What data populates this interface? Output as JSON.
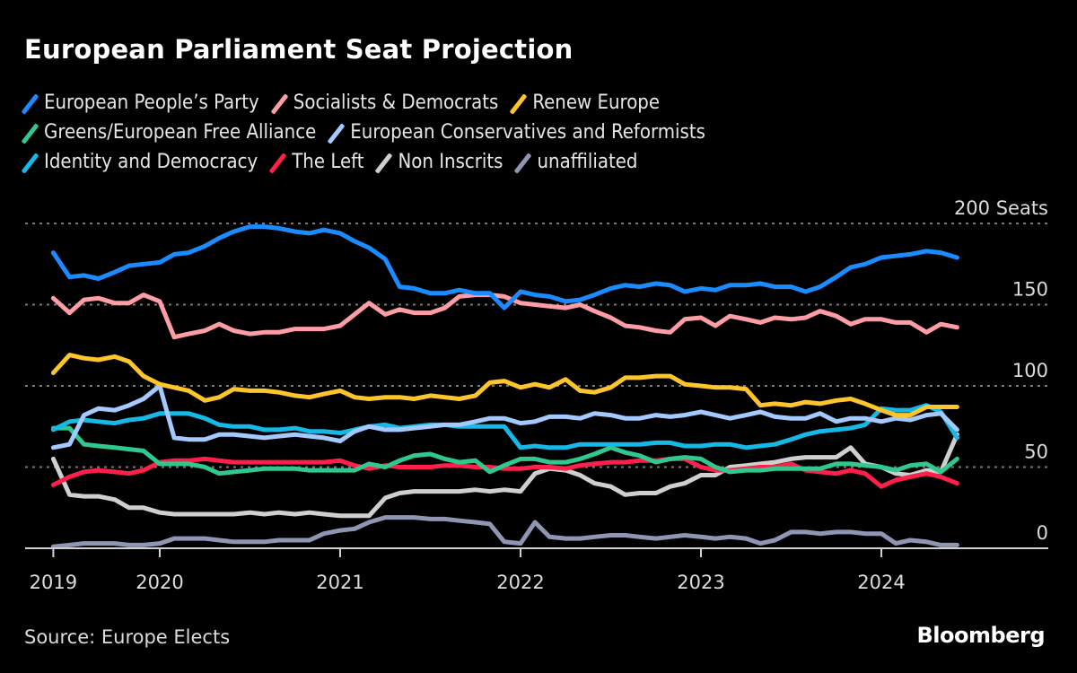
{
  "chart_data": {
    "type": "line",
    "title": "European Parliament Seat Projection",
    "xlabel": "",
    "ylabel": "Seats",
    "y_unit_label": "200 Seats",
    "ylim": [
      0,
      200
    ],
    "yticks": [
      0,
      50,
      100,
      150,
      200
    ],
    "ytick_labels": [
      "0",
      "50",
      "100",
      "150",
      "200 Seats"
    ],
    "xlim": [
      2019.41,
      2024.42
    ],
    "xticks": [
      2019.41,
      2020,
      2021,
      2022,
      2023,
      2024
    ],
    "xtick_labels": [
      "2019",
      "2020",
      "2021",
      "2022",
      "2023",
      "2024"
    ],
    "grid": true,
    "legend_position": "top-left",
    "x": [
      2019.41,
      2019.5,
      2019.58,
      2019.66,
      2019.75,
      2019.83,
      2019.91,
      2020.0,
      2020.08,
      2020.16,
      2020.25,
      2020.33,
      2020.41,
      2020.5,
      2020.58,
      2020.66,
      2020.75,
      2020.83,
      2020.91,
      2021.0,
      2021.08,
      2021.16,
      2021.25,
      2021.33,
      2021.41,
      2021.5,
      2021.58,
      2021.66,
      2021.75,
      2021.83,
      2021.91,
      2022.0,
      2022.08,
      2022.16,
      2022.25,
      2022.33,
      2022.41,
      2022.5,
      2022.58,
      2022.66,
      2022.75,
      2022.83,
      2022.91,
      2023.0,
      2023.08,
      2023.16,
      2023.25,
      2023.33,
      2023.41,
      2023.5,
      2023.58,
      2023.66,
      2023.75,
      2023.83,
      2023.91,
      2024.0,
      2024.08,
      2024.16,
      2024.25,
      2024.33,
      2024.42
    ],
    "series": [
      {
        "name": "European People’s Party",
        "color": "#1a8cff",
        "values": [
          182,
          167,
          168,
          166,
          170,
          174,
          175,
          176,
          181,
          182,
          186,
          191,
          195,
          198,
          198,
          197,
          195,
          194,
          196,
          194,
          189,
          185,
          178,
          161,
          160,
          157,
          157,
          159,
          157,
          157,
          148,
          158,
          156,
          155,
          152,
          153,
          156,
          160,
          162,
          161,
          163,
          162,
          158,
          160,
          159,
          162,
          162,
          163,
          161,
          161,
          158,
          161,
          167,
          173,
          175,
          179,
          180,
          181,
          183,
          182,
          179
        ]
      },
      {
        "name": "Socialists & Democrats",
        "color": "#ff9da7",
        "values": [
          154,
          145,
          153,
          154,
          151,
          151,
          156,
          152,
          130,
          132,
          134,
          138,
          134,
          132,
          133,
          133,
          135,
          135,
          135,
          137,
          144,
          151,
          144,
          147,
          145,
          145,
          148,
          155,
          156,
          156,
          155,
          151,
          150,
          149,
          148,
          150,
          146,
          142,
          137,
          136,
          134,
          133,
          141,
          142,
          137,
          143,
          141,
          139,
          142,
          141,
          142,
          146,
          143,
          138,
          141,
          141,
          139,
          139,
          133,
          138,
          136
        ]
      },
      {
        "name": "Renew Europe",
        "color": "#fdc52c",
        "values": [
          108,
          119,
          117,
          116,
          118,
          115,
          106,
          101,
          99,
          97,
          91,
          93,
          98,
          97,
          97,
          96,
          94,
          93,
          95,
          97,
          93,
          92,
          93,
          93,
          92,
          94,
          93,
          92,
          94,
          102,
          103,
          99,
          101,
          99,
          104,
          97,
          96,
          99,
          105,
          105,
          106,
          106,
          101,
          100,
          99,
          99,
          98,
          88,
          89,
          88,
          90,
          89,
          91,
          92,
          89,
          85,
          82,
          82,
          87,
          87,
          87
        ]
      },
      {
        "name": "Greens/European Free Alliance",
        "color": "#30c88f",
        "values": [
          74,
          74,
          64,
          63,
          62,
          61,
          60,
          52,
          52,
          52,
          50,
          46,
          47,
          48,
          49,
          49,
          49,
          48,
          48,
          48,
          48,
          52,
          50,
          54,
          57,
          58,
          55,
          53,
          54,
          47,
          51,
          55,
          55,
          53,
          53,
          55,
          58,
          62,
          59,
          57,
          53,
          55,
          56,
          55,
          50,
          47,
          48,
          48,
          49,
          49,
          49,
          49,
          52,
          52,
          51,
          50,
          48,
          51,
          52,
          47,
          55
        ]
      },
      {
        "name": "European Conservatives and Reformists",
        "color": "#a3c9ff",
        "values": [
          62,
          64,
          82,
          86,
          85,
          88,
          92,
          100,
          68,
          67,
          67,
          70,
          70,
          69,
          68,
          69,
          70,
          69,
          68,
          66,
          72,
          75,
          73,
          73,
          74,
          75,
          76,
          76,
          78,
          80,
          80,
          77,
          78,
          81,
          81,
          80,
          83,
          82,
          80,
          80,
          82,
          81,
          82,
          84,
          82,
          80,
          82,
          84,
          81,
          80,
          80,
          83,
          78,
          80,
          80,
          78,
          80,
          79,
          82,
          83,
          73
        ]
      },
      {
        "name": "Identity and Democracy",
        "color": "#16b8e6",
        "values": [
          73,
          78,
          79,
          78,
          77,
          79,
          80,
          83,
          83,
          83,
          80,
          76,
          75,
          75,
          73,
          73,
          74,
          72,
          72,
          71,
          73,
          75,
          76,
          74,
          75,
          76,
          76,
          75,
          75,
          75,
          75,
          62,
          63,
          62,
          62,
          64,
          64,
          64,
          64,
          64,
          65,
          65,
          63,
          63,
          64,
          64,
          62,
          63,
          64,
          67,
          70,
          72,
          73,
          74,
          76,
          86,
          85,
          85,
          88,
          84,
          68
        ]
      },
      {
        "name": "The Left",
        "color": "#ff1f4b",
        "values": [
          39,
          44,
          47,
          48,
          47,
          46,
          48,
          53,
          54,
          54,
          55,
          54,
          53,
          53,
          53,
          53,
          53,
          53,
          53,
          54,
          51,
          49,
          51,
          50,
          50,
          50,
          51,
          51,
          50,
          50,
          49,
          49,
          50,
          50,
          49,
          51,
          52,
          53,
          53,
          54,
          54,
          55,
          55,
          50,
          48,
          48,
          49,
          50,
          50,
          52,
          48,
          47,
          46,
          48,
          46,
          38,
          42,
          44,
          46,
          44,
          40
        ]
      },
      {
        "name": "Non Inscrits",
        "color": "#cfcfcf",
        "values": [
          55,
          33,
          32,
          32,
          30,
          25,
          25,
          22,
          21,
          21,
          21,
          21,
          21,
          22,
          21,
          22,
          21,
          22,
          21,
          20,
          20,
          20,
          31,
          34,
          35,
          35,
          35,
          35,
          36,
          35,
          36,
          35,
          46,
          49,
          48,
          45,
          40,
          38,
          33,
          34,
          34,
          38,
          40,
          45,
          45,
          50,
          51,
          52,
          53,
          55,
          56,
          56,
          56,
          62,
          52,
          50,
          46,
          45,
          48,
          47,
          70
        ]
      },
      {
        "name": "unaffiliated",
        "color": "#8f96b3",
        "values": [
          1,
          2,
          3,
          3,
          3,
          2,
          2,
          3,
          6,
          6,
          6,
          5,
          4,
          4,
          4,
          5,
          5,
          5,
          9,
          11,
          12,
          16,
          19,
          19,
          19,
          18,
          18,
          17,
          16,
          15,
          4,
          3,
          16,
          7,
          6,
          6,
          7,
          8,
          8,
          7,
          6,
          7,
          8,
          7,
          6,
          7,
          6,
          3,
          5,
          10,
          10,
          9,
          10,
          10,
          9,
          9,
          3,
          5,
          4,
          2,
          2
        ]
      }
    ]
  },
  "footer": {
    "source": "Source: Europe Elects",
    "brand": "Bloomberg"
  }
}
